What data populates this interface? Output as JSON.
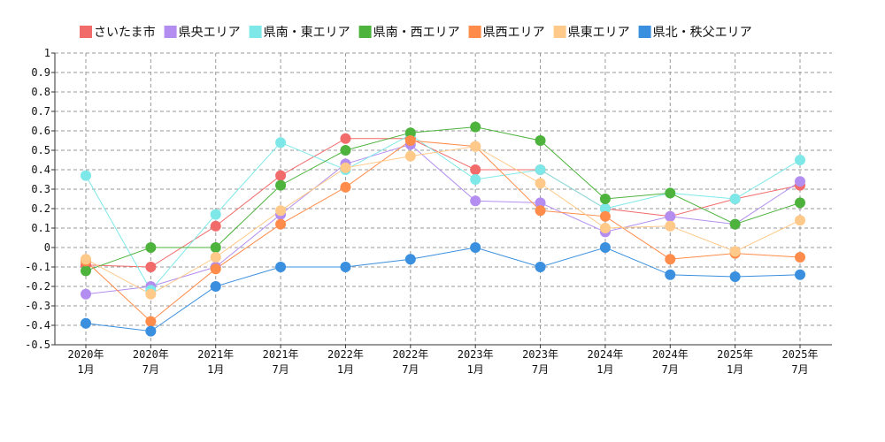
{
  "chart_data": {
    "type": "line",
    "categories": [
      [
        "2020年",
        "1月"
      ],
      [
        "2020年",
        "7月"
      ],
      [
        "2021年",
        "1月"
      ],
      [
        "2021年",
        "7月"
      ],
      [
        "2022年",
        "1月"
      ],
      [
        "2022年",
        "7月"
      ],
      [
        "2023年",
        "1月"
      ],
      [
        "2023年",
        "7月"
      ],
      [
        "2024年",
        "1月"
      ],
      [
        "2024年",
        "7月"
      ],
      [
        "2025年",
        "1月"
      ],
      [
        "2025年",
        "7月"
      ]
    ],
    "ylim": [
      -0.5,
      1
    ],
    "yticks": [
      "1",
      "0.9",
      "0.8",
      "0.7",
      "0.6",
      "0.5",
      "0.4",
      "0.3",
      "0.2",
      "0.1",
      "0",
      "-0.1",
      "-0.2",
      "-0.3",
      "-0.4",
      "-0.5"
    ],
    "grid": true,
    "legend_position": "top",
    "series": [
      {
        "name": "さいたま市",
        "color": "#f26b6b",
        "values": [
          -0.09,
          -0.1,
          0.11,
          0.37,
          0.56,
          0.56,
          0.4,
          0.4,
          0.2,
          0.16,
          0.25,
          0.32
        ]
      },
      {
        "name": "県央エリア",
        "color": "#b38ef0",
        "values": [
          -0.24,
          -0.2,
          -0.1,
          0.17,
          0.43,
          0.53,
          0.24,
          0.23,
          0.08,
          0.16,
          0.12,
          0.34
        ]
      },
      {
        "name": "県南・東エリア",
        "color": "#7ee8e8",
        "values": [
          0.37,
          -0.22,
          0.17,
          0.54,
          0.4,
          0.58,
          0.35,
          0.4,
          0.2,
          0.28,
          0.25,
          0.45
        ]
      },
      {
        "name": "県南・西エリア",
        "color": "#4db33d",
        "values": [
          -0.12,
          0.0,
          0.0,
          0.32,
          0.5,
          0.59,
          0.62,
          0.55,
          0.25,
          0.28,
          0.12,
          0.23
        ]
      },
      {
        "name": "県西エリア",
        "color": "#ff8c4a",
        "values": [
          -0.07,
          -0.38,
          -0.11,
          0.12,
          0.31,
          0.55,
          0.52,
          0.19,
          0.16,
          -0.06,
          -0.03,
          -0.05
        ]
      },
      {
        "name": "県東エリア",
        "color": "#ffc98a",
        "values": [
          -0.06,
          -0.24,
          -0.05,
          0.19,
          0.41,
          0.47,
          0.52,
          0.33,
          0.1,
          0.11,
          -0.02,
          0.14
        ]
      },
      {
        "name": "県北・秩父エリア",
        "color": "#3a8fde",
        "values": [
          -0.39,
          -0.43,
          -0.2,
          -0.1,
          -0.1,
          -0.06,
          0.0,
          -0.1,
          0.0,
          -0.14,
          -0.15,
          -0.14
        ]
      }
    ]
  }
}
